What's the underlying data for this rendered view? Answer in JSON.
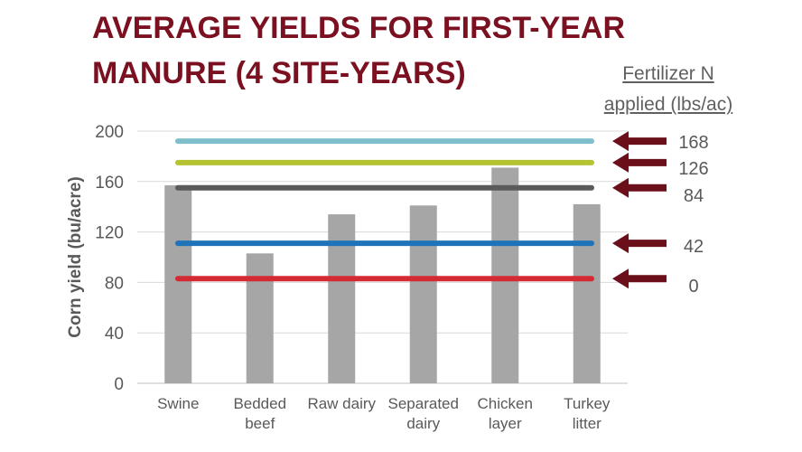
{
  "title_lines": [
    "AVERAGE YIELDS FOR FIRST-YEAR",
    "MANURE (4 SITE-YEARS)"
  ],
  "legend_title_lines": [
    "Fertilizer N",
    "applied  (lbs/ac)"
  ],
  "colors": {
    "title": "#7b1020",
    "bar": "#a6a6a6",
    "arrow": "#6b0f1a",
    "text": "#595959",
    "grid": "#d9d9d9"
  },
  "chart_data": {
    "type": "bar",
    "categories": [
      [
        "Swine"
      ],
      [
        "Bedded",
        "beef"
      ],
      [
        "Raw dairy"
      ],
      [
        "Separated",
        "dairy"
      ],
      [
        "Chicken",
        "layer"
      ],
      [
        "Turkey",
        "litter"
      ]
    ],
    "values": [
      157,
      103,
      134,
      141,
      171,
      142
    ],
    "ylabel": "Corn yield (bu/acre)",
    "ylim": [
      0,
      200
    ],
    "yticks": [
      0,
      40,
      80,
      120,
      160,
      200
    ],
    "grid": true,
    "reference_lines": [
      {
        "label": "168",
        "value": 192,
        "color": "#7fbfcc"
      },
      {
        "label": "126",
        "value": 175,
        "color": "#b5c232"
      },
      {
        "label": "84",
        "value": 155,
        "color": "#5a5a5a"
      },
      {
        "label": "42",
        "value": 111,
        "color": "#1f73b8"
      },
      {
        "label": "0",
        "value": 83,
        "color": "#d42a33"
      }
    ]
  }
}
